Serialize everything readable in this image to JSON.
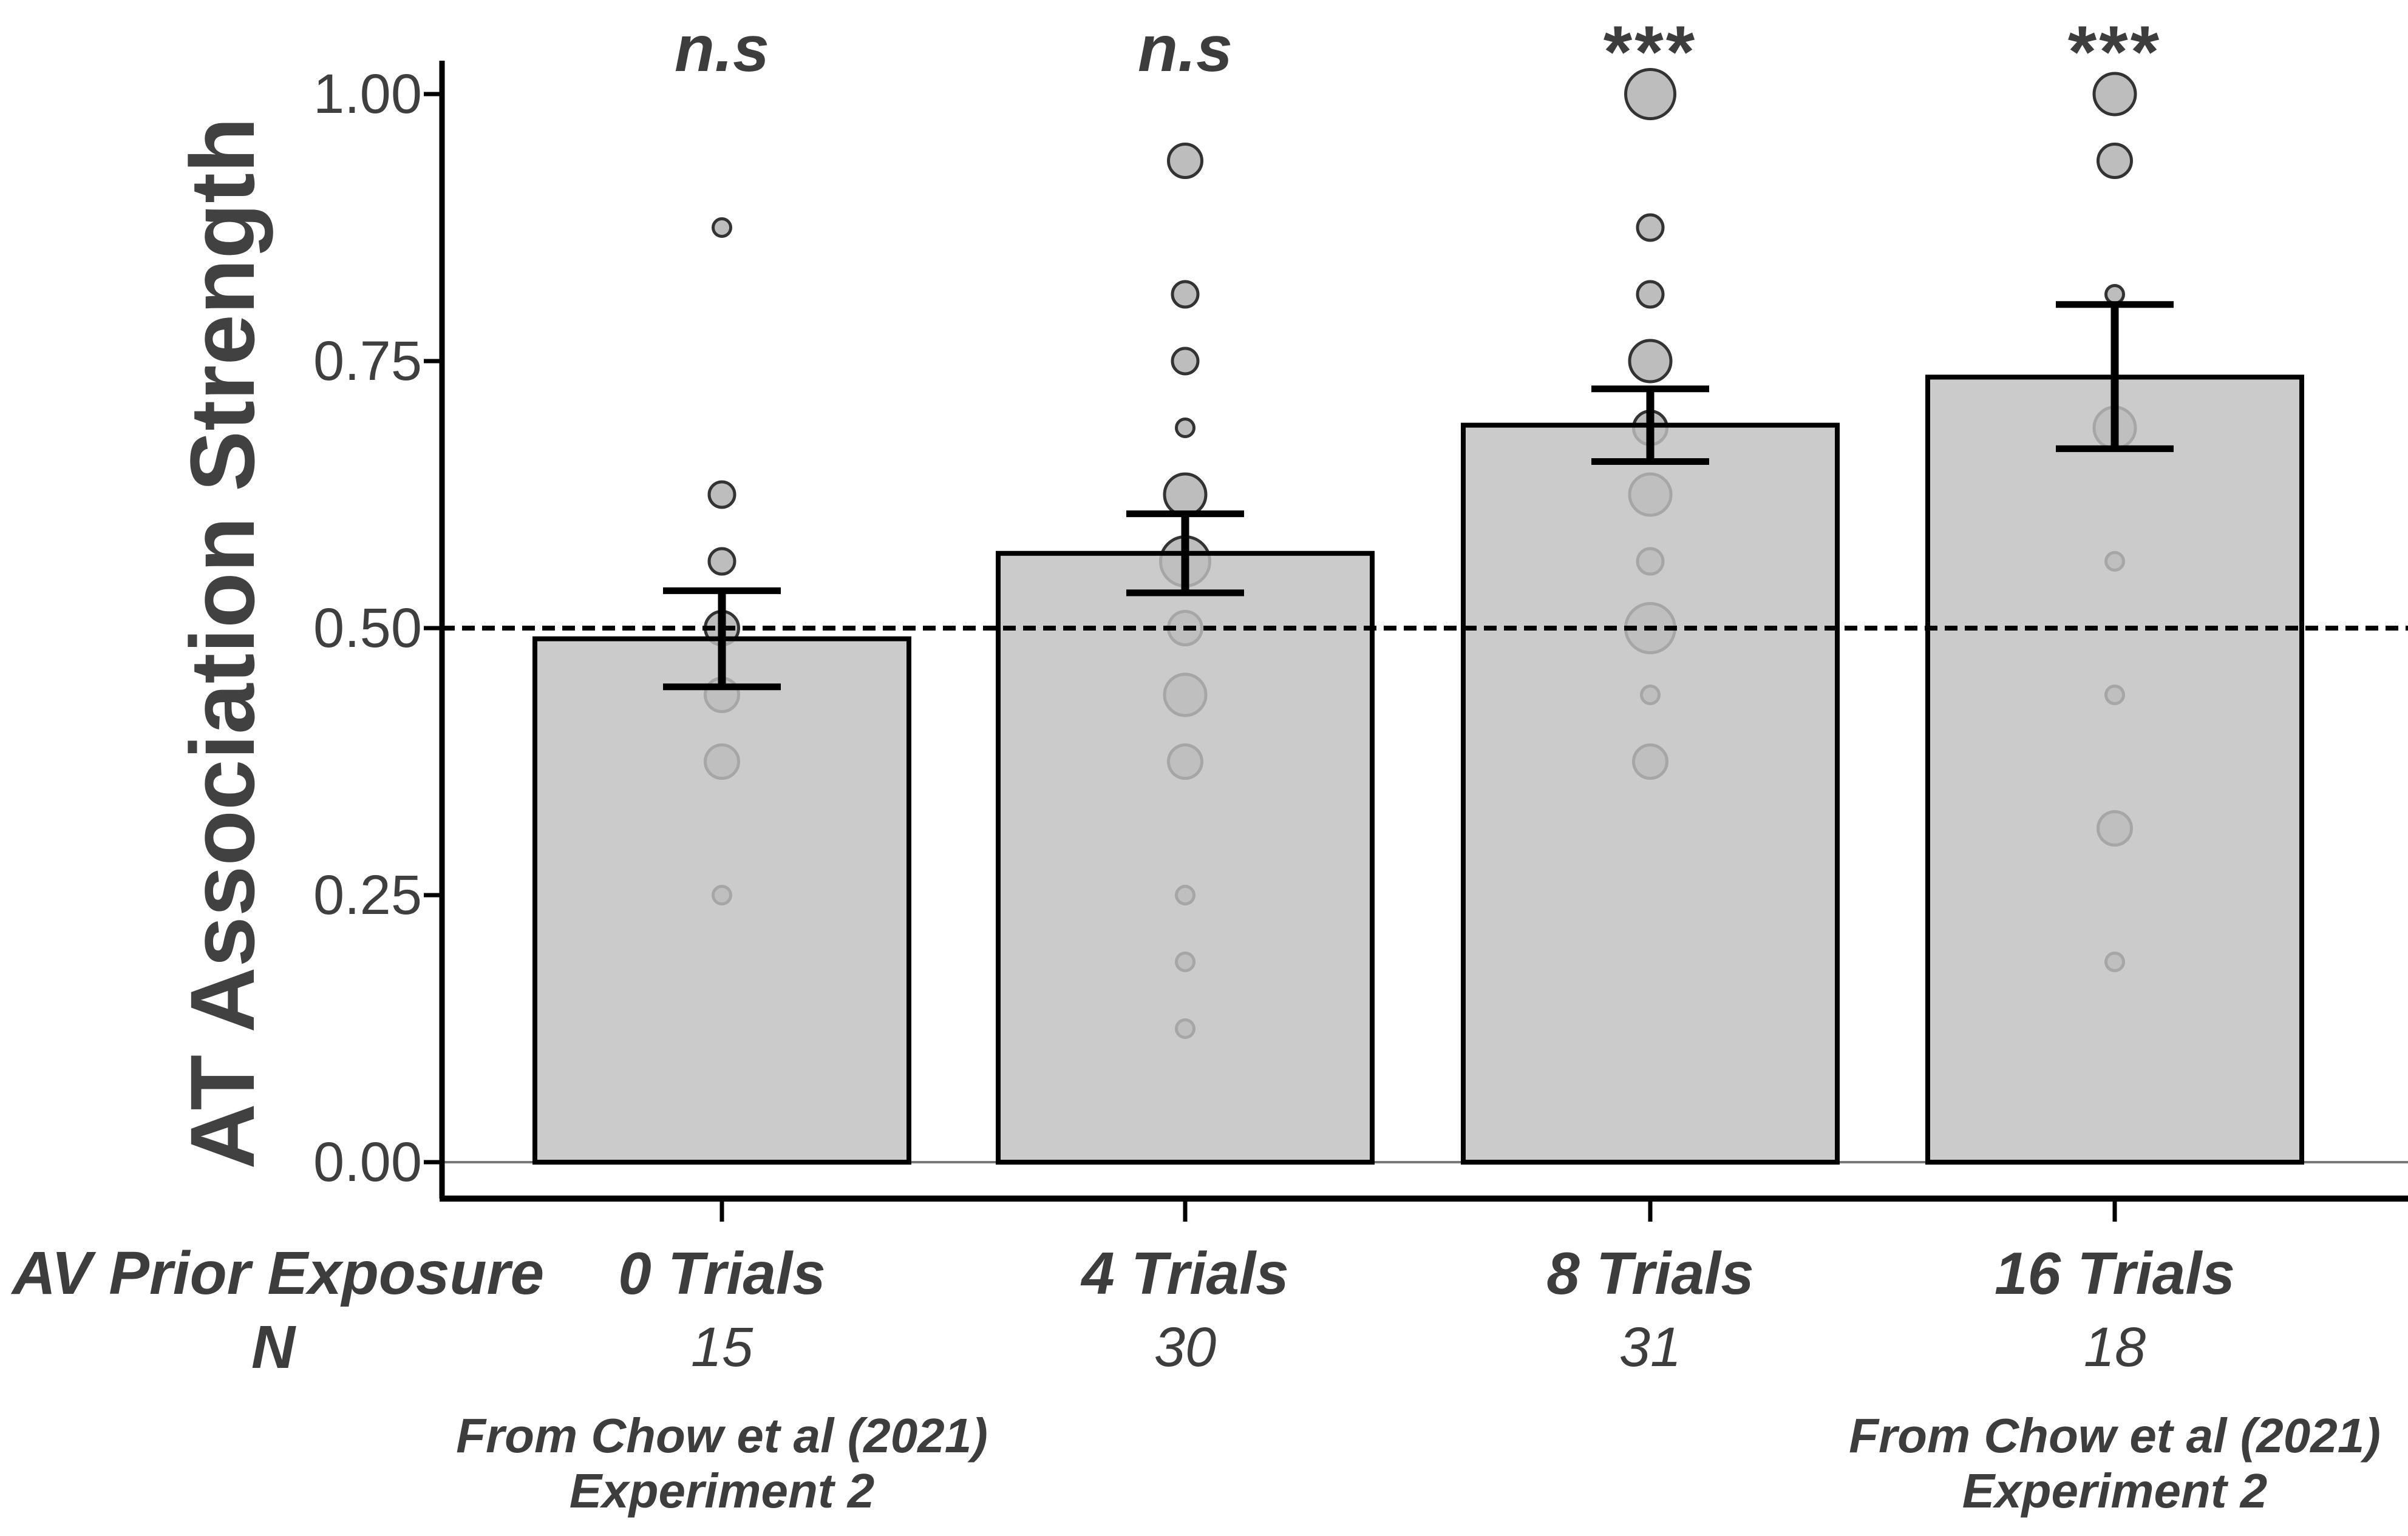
{
  "chart_data": {
    "type": "bar",
    "title": "",
    "ylabel": "AT Association Strength",
    "xlabel": "AV Prior Exposure",
    "n_row_label": "N",
    "ylim": [
      0,
      1.05
    ],
    "ytick_labels": [
      "1.00",
      "0.75",
      "0.50",
      "0.25",
      "0.00"
    ],
    "ytick_values": [
      1.0,
      0.75,
      0.5,
      0.25,
      0.0
    ],
    "grid": "off",
    "legend": "none",
    "reference_line": 0.5,
    "categories": [
      "0 Trials",
      "4 Trials",
      "8 Trials",
      "16 Trials"
    ],
    "n_values": [
      "15",
      "30",
      "31",
      "18"
    ],
    "significance": [
      "n.s",
      "n.s",
      "***",
      "***"
    ],
    "series": [
      {
        "name": "AT Association Strength (mean)",
        "values": [
          0.49,
          0.57,
          0.69,
          0.735
        ]
      }
    ],
    "error_low": [
      0.445,
      0.533,
      0.656,
      0.668
    ],
    "error_high": [
      0.535,
      0.607,
      0.724,
      0.803
    ],
    "points": [
      [
        {
          "value": 0.875,
          "count": 1
        },
        {
          "value": 0.625,
          "count": 2
        },
        {
          "value": 0.5625,
          "count": 2
        },
        {
          "value": 0.5,
          "count": 3
        },
        {
          "value": 0.4375,
          "count": 3
        },
        {
          "value": 0.375,
          "count": 3
        },
        {
          "value": 0.25,
          "count": 1
        }
      ],
      [
        {
          "value": 0.9375,
          "count": 3
        },
        {
          "value": 0.8125,
          "count": 2
        },
        {
          "value": 0.75,
          "count": 2
        },
        {
          "value": 0.6875,
          "count": 1
        },
        {
          "value": 0.625,
          "count": 4
        },
        {
          "value": 0.5625,
          "count": 5
        },
        {
          "value": 0.5,
          "count": 3
        },
        {
          "value": 0.4375,
          "count": 4
        },
        {
          "value": 0.375,
          "count": 3
        },
        {
          "value": 0.25,
          "count": 1
        },
        {
          "value": 0.1875,
          "count": 1
        },
        {
          "value": 0.125,
          "count": 1
        }
      ],
      [
        {
          "value": 1.0,
          "count": 5
        },
        {
          "value": 0.875,
          "count": 2
        },
        {
          "value": 0.8125,
          "count": 2
        },
        {
          "value": 0.75,
          "count": 4
        },
        {
          "value": 0.6875,
          "count": 3
        },
        {
          "value": 0.625,
          "count": 4
        },
        {
          "value": 0.5625,
          "count": 2
        },
        {
          "value": 0.5,
          "count": 5
        },
        {
          "value": 0.4375,
          "count": 1
        },
        {
          "value": 0.375,
          "count": 3
        }
      ],
      [
        {
          "value": 1.0,
          "count": 4
        },
        {
          "value": 0.9375,
          "count": 3
        },
        {
          "value": 0.8125,
          "count": 1
        },
        {
          "value": 0.6875,
          "count": 4
        },
        {
          "value": 0.5625,
          "count": 1
        },
        {
          "value": 0.4375,
          "count": 1
        },
        {
          "value": 0.3125,
          "count": 3
        },
        {
          "value": 0.1875,
          "count": 1
        }
      ]
    ],
    "caption": {
      "line1": "From Chow et al (2021)",
      "line2": "Experiment 2"
    },
    "caption_columns": [
      0,
      3
    ],
    "colors": {
      "bar_fill": "#c9c9c9",
      "bar_stroke": "#000000",
      "point_fill": "#bdbdbd",
      "point_stroke": "#333333",
      "error_bar": "#000000",
      "reference_line": "#000000",
      "axis": "#000000",
      "baseline": "#787878",
      "text": "#3d3d3d"
    }
  }
}
